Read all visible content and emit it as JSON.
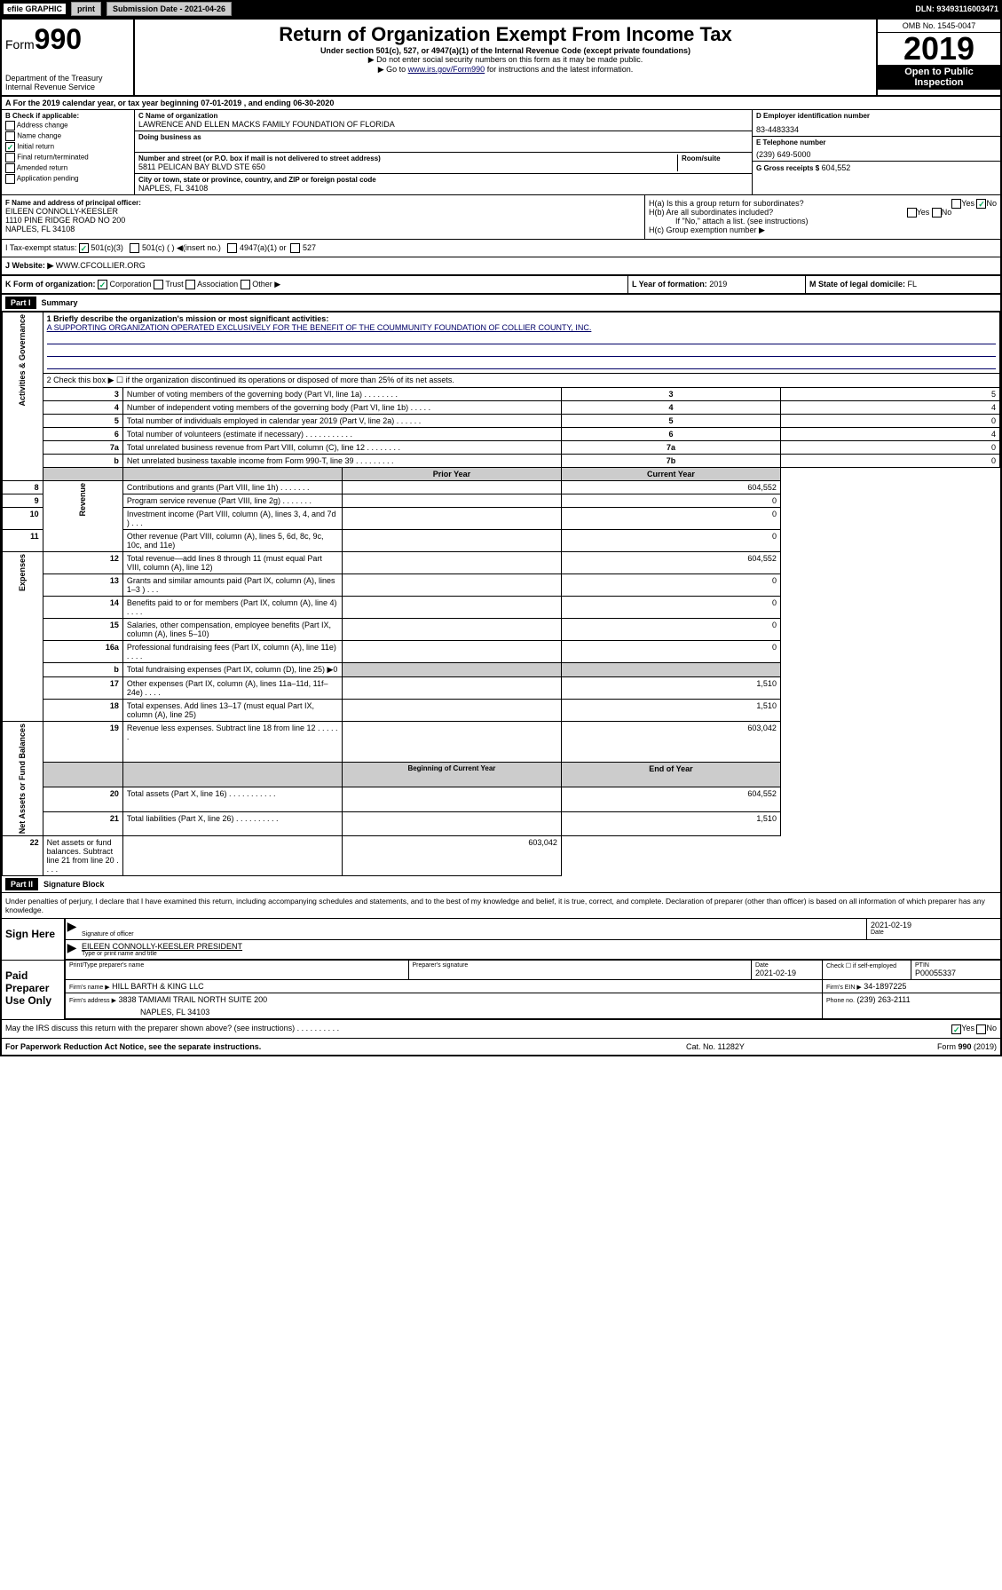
{
  "topbar": {
    "efile": "efile GRAPHIC",
    "print": "print",
    "sub_lbl": "Submission Date - 2021-04-26",
    "dln": "DLN: 93493116003471"
  },
  "header": {
    "form_lbl": "Form",
    "form_no": "990",
    "dept": "Department of the Treasury",
    "irs": "Internal Revenue Service",
    "title": "Return of Organization Exempt From Income Tax",
    "sub1": "Under section 501(c), 527, or 4947(a)(1) of the Internal Revenue Code (except private foundations)",
    "sub2": "▶ Do not enter social security numbers on this form as it may be made public.",
    "sub3": "▶ Go to www.irs.gov/Form990 for instructions and the latest information.",
    "omb": "OMB No. 1545-0047",
    "year": "2019",
    "open": "Open to Public Inspection"
  },
  "row_a": "A For the 2019 calendar year, or tax year beginning 07-01-2019    , and ending 06-30-2020",
  "b": {
    "hdr": "B Check if applicable:",
    "addr": "Address change",
    "name": "Name change",
    "init": "Initial return",
    "final": "Final return/terminated",
    "amend": "Amended return",
    "app": "Application pending"
  },
  "c": {
    "name_lbl": "C Name of organization",
    "name": "LAWRENCE AND ELLEN MACKS FAMILY FOUNDATION OF FLORIDA",
    "dba_lbl": "Doing business as",
    "street_lbl": "Number and street (or P.O. box if mail is not delivered to street address)",
    "room_lbl": "Room/suite",
    "street": "5811 PELICAN BAY BLVD STE 650",
    "city_lbl": "City or town, state or province, country, and ZIP or foreign postal code",
    "city": "NAPLES, FL  34108"
  },
  "d": {
    "lbl": "D Employer identification number",
    "val": "83-4483334"
  },
  "e": {
    "lbl": "E Telephone number",
    "val": "(239) 649-5000"
  },
  "g": {
    "lbl": "G Gross receipts $",
    "val": "604,552"
  },
  "f": {
    "lbl": "F Name and address of principal officer:",
    "name": "EILEEN CONNOLLY-KEESLER",
    "addr1": "1110 PINE RIDGE ROAD NO 200",
    "addr2": "NAPLES, FL  34108"
  },
  "h": {
    "a_lbl": "H(a)  Is this a group return for subordinates?",
    "b_lbl": "H(b)  Are all subordinates included?",
    "b_note": "If \"No,\" attach a list. (see instructions)",
    "c_lbl": "H(c)  Group exemption number ▶",
    "yes": "Yes",
    "no": "No"
  },
  "i": {
    "lbl": "I   Tax-exempt status:",
    "o1": "501(c)(3)",
    "o2": "501(c) (  ) ◀(insert no.)",
    "o3": "4947(a)(1) or",
    "o4": "527"
  },
  "j": {
    "lbl": "J   Website: ▶",
    "val": "WWW.CFCOLLIER.ORG"
  },
  "k": {
    "lbl": "K Form of organization:",
    "corp": "Corporation",
    "trust": "Trust",
    "assoc": "Association",
    "other": "Other ▶",
    "l_lbl": "L Year of formation:",
    "l_val": "2019",
    "m_lbl": "M State of legal domicile:",
    "m_val": "FL"
  },
  "part1": {
    "hdr": "Part I",
    "title": "Summary",
    "sections": [
      "Activities & Governance",
      "Revenue",
      "Expenses",
      "Net Assets or Fund Balances"
    ],
    "l1_lbl": "1  Briefly describe the organization's mission or most significant activities:",
    "l1_val": "A SUPPORTING ORGANIZATION OPERATED EXCLUSIVELY FOR THE BENEFIT OF THE COUMMUNITY FOUNDATION OF COLLIER COUNTY, INC.",
    "l2": "2   Check this box ▶ ☐  if the organization discontinued its operations or disposed of more than 25% of its net assets.",
    "rows_single": [
      {
        "n": "3",
        "d": "Number of voting members of the governing body (Part VI, line 1a)  .    .    .    .    .    .    .    .",
        "box": "3",
        "v": "5"
      },
      {
        "n": "4",
        "d": "Number of independent voting members of the governing body (Part VI, line 1b)  .    .    .    .    .",
        "box": "4",
        "v": "4"
      },
      {
        "n": "5",
        "d": "Total number of individuals employed in calendar year 2019 (Part V, line 2a)  .    .    .    .    .    .",
        "box": "5",
        "v": "0"
      },
      {
        "n": "6",
        "d": "Total number of volunteers (estimate if necessary)  .    .    .    .    .    .    .    .    .    .    .",
        "box": "6",
        "v": "4"
      },
      {
        "n": "7a",
        "d": "Total unrelated business revenue from Part VIII, column (C), line 12  .    .    .    .    .    .    .    .",
        "box": "7a",
        "v": "0"
      },
      {
        "n": "b",
        "d": "Net unrelated business taxable income from Form 990-T, line 39  .    .    .    .    .    .    .    .    .",
        "box": "7b",
        "v": "0"
      }
    ],
    "py_hdr": "Prior Year",
    "cy_hdr": "Current Year",
    "rows_rev": [
      {
        "n": "8",
        "d": "Contributions and grants (Part VIII, line 1h)  .    .    .    .    .    .    .",
        "py": "",
        "cy": "604,552"
      },
      {
        "n": "9",
        "d": "Program service revenue (Part VIII, line 2g)  .    .    .    .    .    .    .",
        "py": "",
        "cy": "0"
      },
      {
        "n": "10",
        "d": "Investment income (Part VIII, column (A), lines 3, 4, and 7d )  .    .    .",
        "py": "",
        "cy": "0"
      },
      {
        "n": "11",
        "d": "Other revenue (Part VIII, column (A), lines 5, 6d, 8c, 9c, 10c, and 11e)",
        "py": "",
        "cy": "0"
      },
      {
        "n": "12",
        "d": "Total revenue—add lines 8 through 11 (must equal Part VIII, column (A), line 12)",
        "py": "",
        "cy": "604,552"
      }
    ],
    "rows_exp": [
      {
        "n": "13",
        "d": "Grants and similar amounts paid (Part IX, column (A), lines 1–3 )  .    .    .",
        "py": "",
        "cy": "0"
      },
      {
        "n": "14",
        "d": "Benefits paid to or for members (Part IX, column (A), line 4)  .    .    .    .",
        "py": "",
        "cy": "0"
      },
      {
        "n": "15",
        "d": "Salaries, other compensation, employee benefits (Part IX, column (A), lines 5–10)",
        "py": "",
        "cy": "0"
      },
      {
        "n": "16a",
        "d": "Professional fundraising fees (Part IX, column (A), line 11e)  .    .    .    .",
        "py": "",
        "cy": "0"
      },
      {
        "n": "b",
        "d": "Total fundraising expenses (Part IX, column (D), line 25) ▶0",
        "py": "shade",
        "cy": "shade"
      },
      {
        "n": "17",
        "d": "Other expenses (Part IX, column (A), lines 11a–11d, 11f–24e)  .    .    .    .",
        "py": "",
        "cy": "1,510"
      },
      {
        "n": "18",
        "d": "Total expenses. Add lines 13–17 (must equal Part IX, column (A), line 25)",
        "py": "",
        "cy": "1,510"
      },
      {
        "n": "19",
        "d": "Revenue less expenses. Subtract line 18 from line 12  .    .    .    .    .    .",
        "py": "",
        "cy": "603,042"
      }
    ],
    "bcy_hdr": "Beginning of Current Year",
    "eoy_hdr": "End of Year",
    "rows_net": [
      {
        "n": "20",
        "d": "Total assets (Part X, line 16)  .    .    .    .    .    .    .    .    .    .    .",
        "py": "",
        "cy": "604,552"
      },
      {
        "n": "21",
        "d": "Total liabilities (Part X, line 26)  .    .    .    .    .    .    .    .    .    .",
        "py": "",
        "cy": "1,510"
      },
      {
        "n": "22",
        "d": "Net assets or fund balances. Subtract line 21 from line 20  .    .    .    .",
        "py": "",
        "cy": "603,042"
      }
    ]
  },
  "part2": {
    "hdr": "Part II",
    "title": "Signature Block",
    "pen": "Under penalties of perjury, I declare that I have examined this return, including accompanying schedules and statements, and to the best of my knowledge and belief, it is true, correct, and complete. Declaration of preparer (other than officer) is based on all information of which preparer has any knowledge."
  },
  "sign": {
    "here": "Sign Here",
    "sig_lbl": "Signature of officer",
    "date1": "2021-02-19",
    "date_lbl": "Date",
    "name": "EILEEN CONNOLLY-KEESLER  PRESIDENT",
    "name_lbl": "Type or print name and title"
  },
  "paid": {
    "lbl": "Paid Preparer Use Only",
    "pp_lbl": "Print/Type preparer's name",
    "sig_lbl": "Preparer's signature",
    "date_lbl": "Date",
    "date": "2021-02-19",
    "check_lbl": "Check ☐ if self-employed",
    "ptin_lbl": "PTIN",
    "ptin": "P00055337",
    "firm_lbl": "Firm's name      ▶",
    "firm": "HILL BARTH & KING LLC",
    "ein_lbl": "Firm's EIN ▶",
    "ein": "34-1897225",
    "addr_lbl": "Firm's address ▶",
    "addr": "3838 TAMIAMI TRAIL NORTH SUITE 200",
    "addr2": "NAPLES, FL  34103",
    "ph_lbl": "Phone no.",
    "ph": "(239) 263-2111"
  },
  "footer": {
    "discuss": "May the IRS discuss this return with the preparer shown above? (see instructions)    .    .    .    .    .    .    .    .    .    .",
    "yes": "Yes",
    "no": "No",
    "pra": "For Paperwork Reduction Act Notice, see the separate instructions.",
    "cat": "Cat. No. 11282Y",
    "form": "Form 990 (2019)"
  }
}
